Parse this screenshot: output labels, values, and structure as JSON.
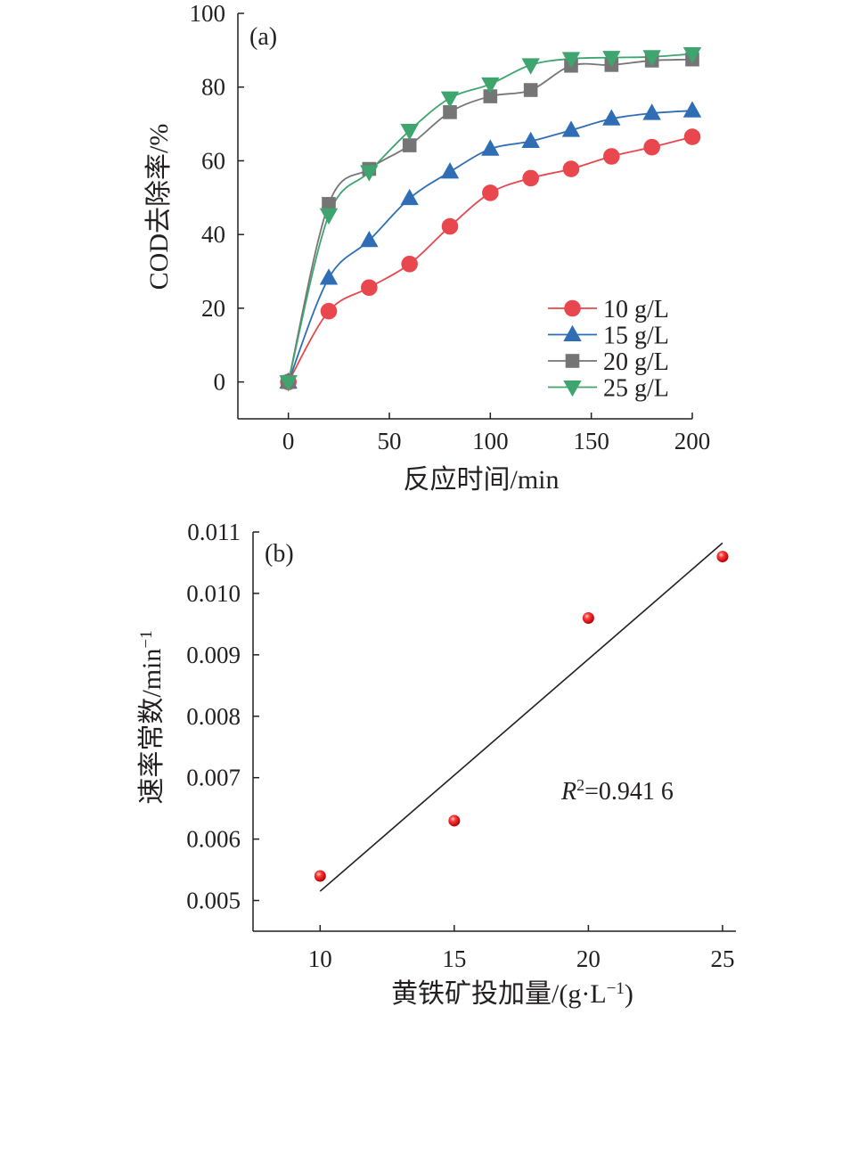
{
  "colors": {
    "red": "#e8474d",
    "blue": "#2f6eb5",
    "gray": "#757575",
    "green": "#3fa56f",
    "axis": "#231f20"
  },
  "chart_data": [
    {
      "panel": "(a)",
      "type": "line",
      "xlabel": "反应时间/min",
      "ylabel": "COD去除率/%",
      "xlim": [
        -25,
        200
      ],
      "ylim": [
        -10,
        100
      ],
      "xticks": [
        0,
        50,
        100,
        150,
        200
      ],
      "yticks": [
        0,
        20,
        40,
        60,
        80,
        100
      ],
      "x": [
        0,
        20,
        40,
        60,
        80,
        100,
        120,
        140,
        160,
        180,
        200
      ],
      "legend_position": "bottom-right",
      "series": [
        {
          "name": "10 g/L",
          "marker": "circle",
          "color": "#e8474d",
          "values": [
            0,
            19.2,
            25.6,
            32.0,
            42.2,
            51.3,
            55.3,
            57.8,
            61.2,
            63.7,
            66.5
          ]
        },
        {
          "name": "15 g/L",
          "marker": "triangle-up",
          "color": "#2f6eb5",
          "values": [
            0,
            28.2,
            38.4,
            49.8,
            57.0,
            63.2,
            65.3,
            68.3,
            71.4,
            72.9,
            73.6
          ]
        },
        {
          "name": "20 g/L",
          "marker": "square",
          "color": "#757575",
          "values": [
            0,
            48.3,
            57.8,
            64.2,
            73.2,
            77.5,
            79.2,
            85.8,
            86.0,
            87.2,
            87.5
          ]
        },
        {
          "name": "25 g/L",
          "marker": "triangle-down",
          "color": "#3fa56f",
          "values": [
            0,
            45.3,
            57.0,
            68.2,
            77.0,
            80.8,
            86.0,
            87.7,
            88.0,
            88.2,
            89.0
          ]
        }
      ]
    },
    {
      "panel": "(b)",
      "type": "scatter",
      "xlabel": "黄铁矿投加量/(g·L",
      "xlabel_sup": "−1",
      "xlabel_end": ")",
      "ylabel": "速率常数/min",
      "ylabel_sup": "−1",
      "xlim": [
        7.5,
        25.5
      ],
      "ylim": [
        0.0045,
        0.011
      ],
      "xticks": [
        "10",
        "15",
        "20",
        "25"
      ],
      "yticks": [
        "0.005",
        "0.006",
        "0.007",
        "0.008",
        "0.009",
        "0.010",
        "0.011"
      ],
      "x": [
        10,
        15,
        20,
        25
      ],
      "values": [
        0.0054,
        0.0063,
        0.0096,
        0.0106
      ],
      "fit_line": {
        "x": [
          10,
          25
        ],
        "y": [
          0.00515,
          0.01082
        ]
      },
      "annotation": {
        "italic": "R",
        "sup": "2",
        "text": "=0.941 6"
      }
    }
  ]
}
